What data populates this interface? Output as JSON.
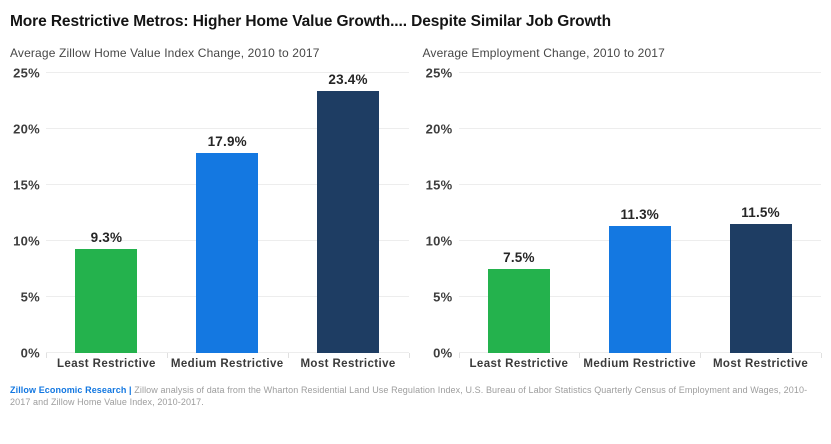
{
  "title": "More Restrictive Metros: Higher Home Value Growth.... Despite Similar Job Growth",
  "footer": {
    "brand": "Zillow Economic Research",
    "separator": "|",
    "description": "Zillow analysis of data from the Wharton Residential Land Use Regulation Index, U.S. Bureau of Labor Statistics Quarterly Census of Employment and Wages, 2010-2017 and Zillow Home Value Index, 2010-2017."
  },
  "colors": {
    "green": "#24b24d",
    "blue": "#1478e1",
    "navy": "#1e3d63",
    "brand_blue": "#1277e1",
    "gridline": "#ededed"
  },
  "chart_data": [
    {
      "type": "bar",
      "title": "Average Zillow Home Value Index Change, 2010 to 2017",
      "categories": [
        "Least Restrictive",
        "Medium Restrictive",
        "Most Restrictive"
      ],
      "values": [
        9.3,
        17.9,
        23.4
      ],
      "value_labels": [
        "9.3%",
        "17.9%",
        "23.4%"
      ],
      "bar_colors": [
        "#24b24d",
        "#1478e1",
        "#1e3d63"
      ],
      "xlabel": "",
      "ylabel": "",
      "ylim": [
        0,
        25
      ],
      "ytick_step": 5,
      "ytick_labels": [
        "0%",
        "5%",
        "10%",
        "15%",
        "20%",
        "25%"
      ],
      "grid": true,
      "legend": "none"
    },
    {
      "type": "bar",
      "title": "Average Employment Change, 2010 to 2017",
      "categories": [
        "Least Restrictive",
        "Medium Restrictive",
        "Most Restrictive"
      ],
      "values": [
        7.5,
        11.3,
        11.5
      ],
      "value_labels": [
        "7.5%",
        "11.3%",
        "11.5%"
      ],
      "bar_colors": [
        "#24b24d",
        "#1478e1",
        "#1e3d63"
      ],
      "xlabel": "",
      "ylabel": "",
      "ylim": [
        0,
        25
      ],
      "ytick_step": 5,
      "ytick_labels": [
        "0%",
        "5%",
        "10%",
        "15%",
        "20%",
        "25%"
      ],
      "grid": true,
      "legend": "none"
    }
  ]
}
